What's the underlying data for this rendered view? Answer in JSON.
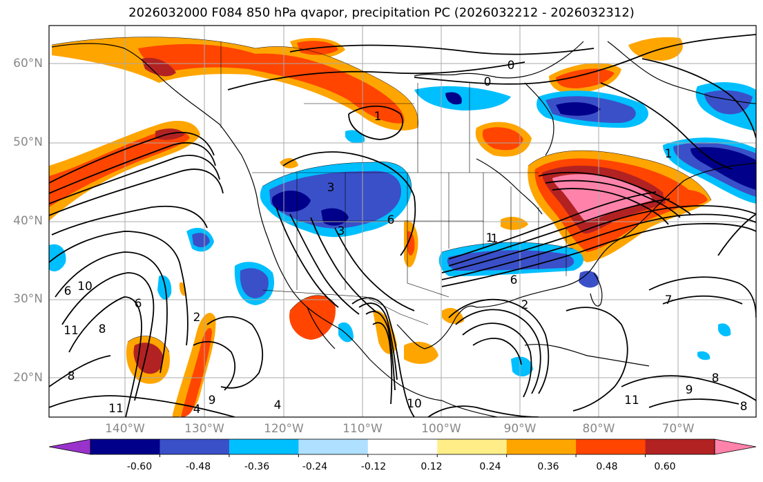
{
  "title": "2026032000 F084 850 hPa qvapor, precipitation PC (2026032212 - 2026032312)",
  "lat_labels": [
    "60°N",
    "50°N",
    "40°N",
    "30°N",
    "20°N"
  ],
  "lon_labels": [
    "140°W",
    "130°W",
    "120°W",
    "110°W",
    "100°W",
    "90°W",
    "80°W",
    "70°W"
  ],
  "colorbar": {
    "colors": [
      "#9933cc",
      "#00008b",
      "#3a50c8",
      "#00bfff",
      "#b0e0ff",
      "#ffffff",
      "#ffee88",
      "#ffa500",
      "#ff4500",
      "#b22222",
      "#ff82ab"
    ],
    "tick_labels": [
      "-0.60",
      "-0.48",
      "-0.36",
      "-0.24",
      "-0.12",
      "0.12",
      "0.24",
      "0.36",
      "0.48",
      "0.60"
    ]
  },
  "contour_labels": [
    "0",
    "0",
    "1",
    "1",
    "1",
    "3",
    "3",
    "6",
    "6",
    "6",
    "10",
    "11",
    "8",
    "8",
    "4",
    "4",
    "9",
    "10",
    "11",
    "8",
    "9",
    "2",
    "2",
    "7",
    "8",
    "6",
    "11",
    "1"
  ]
}
